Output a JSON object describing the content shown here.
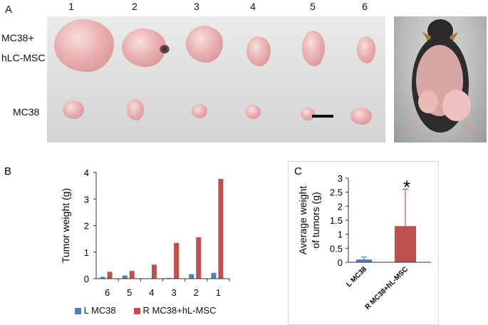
{
  "panel_a": {
    "letter": "A",
    "lanes": [
      "1",
      "2",
      "3",
      "4",
      "5",
      "6"
    ],
    "row_labels": {
      "top_line1": "MC38+",
      "top_line2": "hLC-MSC",
      "bottom": "MC38"
    }
  },
  "chart_data": [
    {
      "type": "bar",
      "panel": "B",
      "categories": [
        "6",
        "5",
        "4",
        "3",
        "2",
        "1"
      ],
      "series": [
        {
          "name": "L MC38",
          "values": [
            0.07,
            0.12,
            0.01,
            0.03,
            0.17,
            0.22
          ],
          "color": "#4f81bd"
        },
        {
          "name": "R MC38+hL-MSC",
          "values": [
            0.26,
            0.29,
            0.53,
            1.35,
            1.56,
            3.76
          ],
          "color": "#c0504d"
        }
      ],
      "ylabel": "Tumor weight (g)",
      "ylim": [
        0,
        4
      ],
      "yticks": [
        "0",
        "1",
        "2",
        "3",
        "4"
      ],
      "grid": false,
      "legend": "bottom"
    },
    {
      "type": "bar",
      "panel": "C",
      "categories": [
        "L MC38",
        "R MC38+hL-MSC"
      ],
      "values": [
        0.1,
        1.29
      ],
      "errors": [
        0.09,
        1.32
      ],
      "colors": [
        "#4f81bd",
        "#c0504d"
      ],
      "ylabel_line1": "Average weight",
      "ylabel_line2": "of  tumors (g)",
      "ylim": [
        0,
        3
      ],
      "yticks": [
        "0",
        "0.5",
        "1",
        "1.5",
        "2",
        "2.5",
        "3"
      ],
      "significance": "*",
      "grid": false
    }
  ]
}
